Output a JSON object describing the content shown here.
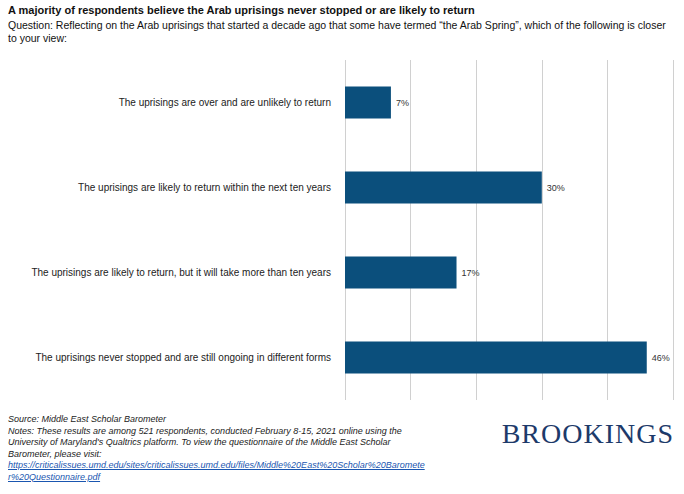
{
  "chart_data": {
    "type": "bar",
    "title": "A majority of respondents believe the Arab uprisings never stopped or are likely to return",
    "subtitle": "Question: Reflecting on the Arab uprisings that started a decade ago that some have termed “the Arab Spring”, which of the following is closer to your view:",
    "categories": [
      "The uprisings are over and are unlikely to return",
      "The uprisings are likely to return within the next ten years",
      "The uprisings are likely to return, but it will take more than ten years",
      "The uprisings never stopped and are still ongoing in different forms"
    ],
    "values": [
      7,
      30,
      17,
      46
    ],
    "value_labels": [
      "7%",
      "30%",
      "17%",
      "46%"
    ],
    "color": "#0b4f7c",
    "orientation": "horizontal",
    "data_labels": true,
    "tick_labels": "y",
    "grid": true,
    "xlim": [
      0,
      50
    ],
    "xticks": [
      0,
      10,
      20,
      30,
      40,
      50
    ],
    "source": "Source: Middle East Scholar Barometer",
    "notes": "Notes: These results are among 521 respondents, conducted February 8-15, 2021 online using the University of Maryland's Qualtrics platform. To view the questionnaire of the Middle East Scholar Barometer, please visit:",
    "url": "https://criticalissues.umd.edu/sites/criticalissues.umd.edu/files/Middle%20East%20Scholar%20Barometer%20Questionnaire.pdf",
    "logo": "BROOKINGS"
  }
}
